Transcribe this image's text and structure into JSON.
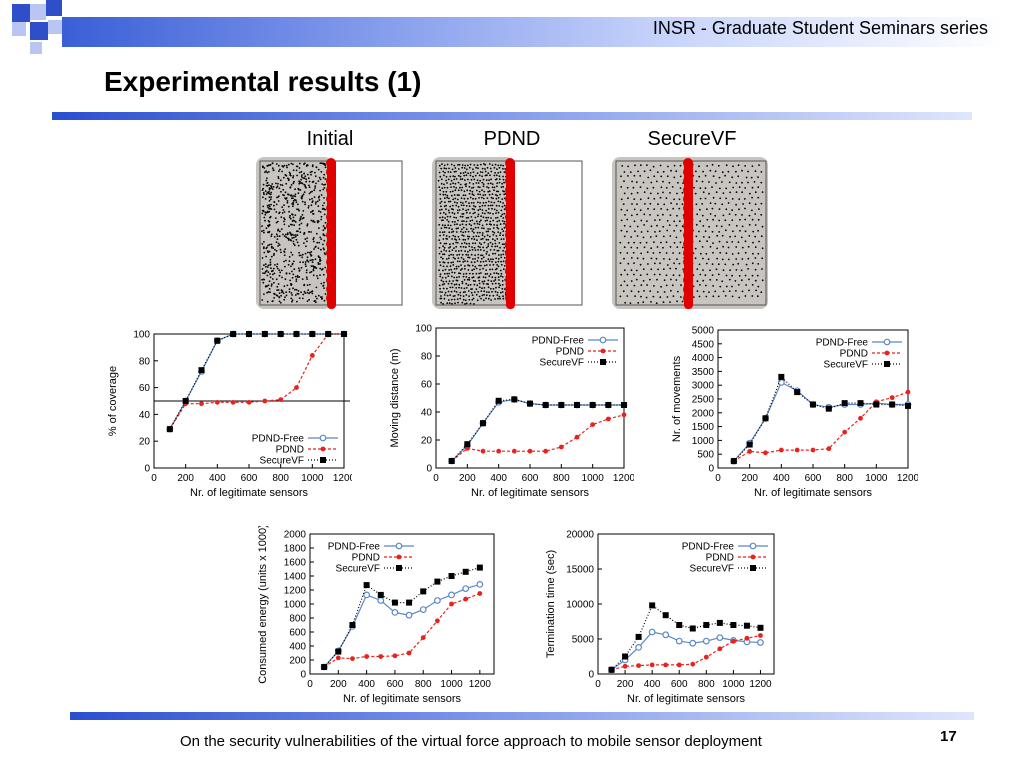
{
  "header": {
    "series_title": "INSR - Graduate Student Seminars series"
  },
  "slide": {
    "title": "Experimental results (1)",
    "footer": "On the security vulnerabilities of the virtual force approach to mobile sensor deployment",
    "page_number": "17"
  },
  "panels": [
    {
      "label": "Initial"
    },
    {
      "label": "PDND"
    },
    {
      "label": "SecureVF"
    }
  ],
  "colors": {
    "pdnd_free": "#5a88c8",
    "pdnd": "#e8231e",
    "securevf": "#000000",
    "red_strip": "#e00000",
    "cloud": "#c8c4bf"
  },
  "chart_data": [
    {
      "type": "line",
      "xlabel": "Nr. of legitimate sensors",
      "ylabel": "% of coverage",
      "xlim": [
        0,
        1200
      ],
      "ylim": [
        0,
        100
      ],
      "xticks": [
        0,
        200,
        400,
        600,
        800,
        1000,
        1200
      ],
      "yticks": [
        0,
        20,
        40,
        60,
        80,
        100
      ],
      "hline": 50,
      "legend_position": "bottom-right",
      "x": [
        100,
        200,
        300,
        400,
        500,
        600,
        700,
        800,
        900,
        1000,
        1100,
        1200
      ],
      "series": [
        {
          "name": "PDND-Free",
          "values": [
            29,
            50,
            72,
            95,
            100,
            100,
            100,
            100,
            100,
            100,
            100,
            100
          ]
        },
        {
          "name": "PDND",
          "values": [
            29,
            48,
            48,
            49,
            49,
            49,
            50,
            51,
            60,
            84,
            100,
            100
          ]
        },
        {
          "name": "SecureVF",
          "values": [
            29,
            50,
            73,
            95,
            100,
            100,
            100,
            100,
            100,
            100,
            100,
            100
          ]
        }
      ]
    },
    {
      "type": "line",
      "xlabel": "Nr. of legitimate sensors",
      "ylabel": "Moving distance (m)",
      "xlim": [
        0,
        1200
      ],
      "ylim": [
        0,
        100
      ],
      "xticks": [
        0,
        200,
        400,
        600,
        800,
        1000,
        1200
      ],
      "yticks": [
        0,
        20,
        40,
        60,
        80,
        100
      ],
      "legend_position": "top-right",
      "x": [
        100,
        200,
        300,
        400,
        500,
        600,
        700,
        800,
        900,
        1000,
        1100,
        1200
      ],
      "series": [
        {
          "name": "PDND-Free",
          "values": [
            5,
            16,
            32,
            47,
            49,
            46,
            45,
            45,
            45,
            45,
            45,
            45
          ]
        },
        {
          "name": "PDND",
          "values": [
            5,
            14,
            12,
            12,
            12,
            12,
            12,
            15,
            22,
            31,
            35,
            38
          ]
        },
        {
          "name": "SecureVF",
          "values": [
            5,
            17,
            32,
            48,
            49,
            46,
            45,
            45,
            45,
            45,
            45,
            45
          ]
        }
      ]
    },
    {
      "type": "line",
      "xlabel": "Nr. of legitimate sensors",
      "ylabel": "Nr. of movements",
      "xlim": [
        0,
        1200
      ],
      "ylim": [
        0,
        5000
      ],
      "xticks": [
        0,
        200,
        400,
        600,
        800,
        1000,
        1200
      ],
      "yticks": [
        0,
        500,
        1000,
        1500,
        2000,
        2500,
        3000,
        3500,
        4000,
        4500,
        5000
      ],
      "legend_position": "top-right",
      "x": [
        100,
        200,
        300,
        400,
        500,
        600,
        700,
        800,
        900,
        1000,
        1100,
        1200
      ],
      "series": [
        {
          "name": "PDND-Free",
          "values": [
            250,
            900,
            1800,
            3100,
            2800,
            2300,
            2200,
            2300,
            2300,
            2350,
            2300,
            2300
          ]
        },
        {
          "name": "PDND",
          "values": [
            250,
            600,
            550,
            650,
            650,
            650,
            700,
            1300,
            1800,
            2400,
            2550,
            2750
          ]
        },
        {
          "name": "SecureVF",
          "values": [
            250,
            850,
            1800,
            3300,
            2750,
            2300,
            2150,
            2350,
            2350,
            2300,
            2300,
            2250
          ]
        }
      ]
    },
    {
      "type": "line",
      "xlabel": "Nr. of legitimate sensors",
      "ylabel": "Consumed energy (units x 1000)",
      "xlim": [
        0,
        1300
      ],
      "ylim": [
        0,
        2000
      ],
      "xticks": [
        0,
        200,
        400,
        600,
        800,
        1000,
        1200
      ],
      "yticks": [
        0,
        200,
        400,
        600,
        800,
        1000,
        1200,
        1400,
        1600,
        1800,
        2000
      ],
      "legend_position": "top-left",
      "x": [
        100,
        200,
        300,
        400,
        500,
        600,
        700,
        800,
        900,
        1000,
        1100,
        1200
      ],
      "series": [
        {
          "name": "PDND-Free",
          "values": [
            100,
            330,
            680,
            1130,
            1050,
            880,
            840,
            920,
            1050,
            1130,
            1220,
            1280
          ]
        },
        {
          "name": "PDND",
          "values": [
            100,
            230,
            220,
            250,
            250,
            260,
            300,
            520,
            760,
            1000,
            1070,
            1150
          ]
        },
        {
          "name": "SecureVF",
          "values": [
            100,
            320,
            700,
            1270,
            1130,
            1020,
            1020,
            1180,
            1320,
            1400,
            1460,
            1520
          ]
        }
      ]
    },
    {
      "type": "line",
      "xlabel": "Nr. of legitimate sensors",
      "ylabel": "Termination time (sec)",
      "xlim": [
        0,
        1300
      ],
      "ylim": [
        0,
        20000
      ],
      "xticks": [
        0,
        200,
        400,
        600,
        800,
        1000,
        1200
      ],
      "yticks": [
        0,
        5000,
        10000,
        15000,
        20000
      ],
      "legend_position": "top-right",
      "x": [
        100,
        200,
        300,
        400,
        500,
        600,
        700,
        800,
        900,
        1000,
        1100,
        1200
      ],
      "series": [
        {
          "name": "PDND-Free",
          "values": [
            600,
            2000,
            3800,
            6000,
            5600,
            4700,
            4400,
            4700,
            5200,
            4800,
            4600,
            4500
          ]
        },
        {
          "name": "PDND",
          "values": [
            600,
            1100,
            1200,
            1300,
            1300,
            1300,
            1400,
            2400,
            3600,
            4700,
            5100,
            5500
          ]
        },
        {
          "name": "SecureVF",
          "values": [
            600,
            2500,
            5300,
            9800,
            8400,
            7000,
            6500,
            7000,
            7300,
            7000,
            6900,
            6600
          ]
        }
      ]
    }
  ]
}
